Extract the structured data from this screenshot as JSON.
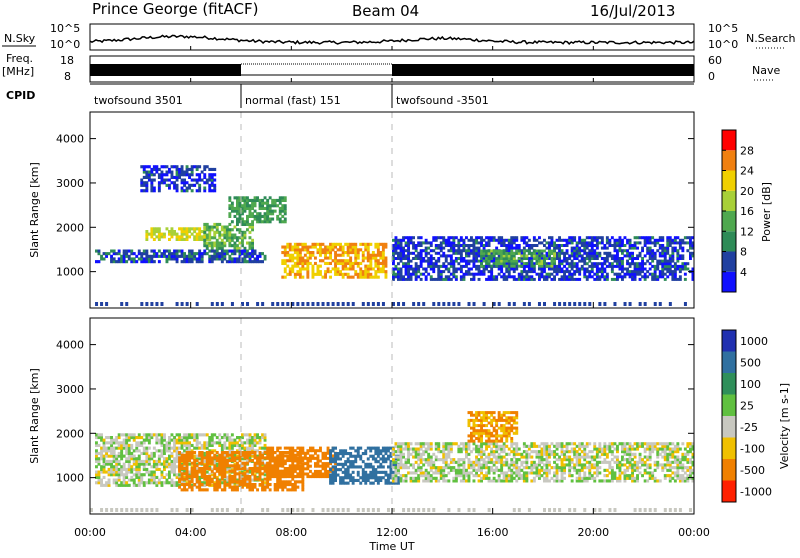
{
  "header": {
    "station": "Prince George (fitACF)",
    "beam": "Beam 04",
    "date": "16/Jul/2013"
  },
  "side_labels": {
    "nsky": "N.Sky",
    "freq_line1": "Freq.",
    "freq_line2": "[MHz]",
    "cpid": "CPID",
    "nsearch": "N.Search",
    "nave": "Nave"
  },
  "noise_axis": {
    "left_ticks": [
      "10^5",
      "10^0"
    ],
    "right_ticks": [
      "10^5",
      "10^0"
    ]
  },
  "freq_axis": {
    "left_ticks": [
      "18",
      "8"
    ],
    "right_ticks": [
      "60",
      "0"
    ]
  },
  "cpid_segments": [
    {
      "label": "twofsound 3501",
      "start_hour": 0,
      "end_hour": 6
    },
    {
      "label": "normal (fast) 151",
      "start_hour": 6,
      "end_hour": 12
    },
    {
      "label": "twofsound -3501",
      "start_hour": 12,
      "end_hour": 24
    }
  ],
  "time_axis": {
    "label": "Time UT",
    "ticks": [
      "00:00",
      "04:00",
      "08:00",
      "12:00",
      "16:00",
      "20:00",
      "00:00"
    ]
  },
  "chart_data": [
    {
      "type": "heatmap",
      "title": "",
      "xlabel": "Time UT",
      "ylabel": "Slant Range [km]",
      "xlim": [
        0,
        24
      ],
      "ylim": [
        180,
        4600
      ],
      "y_ticks": [
        "1000",
        "2000",
        "3000",
        "4000"
      ],
      "colorbar": {
        "label": "Power [dB]",
        "ticks": [
          "4",
          "8",
          "12",
          "16",
          "20",
          "24",
          "28"
        ],
        "colors": [
          "#1010ff",
          "#2040a0",
          "#2e8b57",
          "#4fa84f",
          "#a8d038",
          "#f0d000",
          "#f08010",
          "#ff0000"
        ]
      },
      "echo_regions": [
        {
          "t0": 2.2,
          "t1": 4.8,
          "r0": 1700,
          "r1": 2000,
          "value": 22
        },
        {
          "t0": 4.5,
          "t1": 6.5,
          "r0": 1500,
          "r1": 2100,
          "value": 16
        },
        {
          "t0": 5.5,
          "t1": 7.8,
          "r0": 2100,
          "r1": 2700,
          "value": 14
        },
        {
          "t0": 7.6,
          "t1": 11.8,
          "r0": 850,
          "r1": 1650,
          "value": 26
        },
        {
          "t0": 0.2,
          "t1": 7.0,
          "r0": 1200,
          "r1": 1500,
          "value": 8
        },
        {
          "t0": 12.0,
          "t1": 24.0,
          "r0": 800,
          "r1": 1800,
          "value": 7
        },
        {
          "t0": 15.5,
          "t1": 18.5,
          "r0": 1100,
          "r1": 1500,
          "value": 15
        },
        {
          "t0": 2.0,
          "t1": 5.0,
          "r0": 2800,
          "r1": 3400,
          "value": 7
        }
      ]
    },
    {
      "type": "heatmap",
      "title": "",
      "xlabel": "Time UT",
      "ylabel": "Slant Range [km]",
      "xlim": [
        0,
        24
      ],
      "ylim": [
        180,
        4600
      ],
      "y_ticks": [
        "1000",
        "2000",
        "3000",
        "4000"
      ],
      "colorbar": {
        "label": "Velocity [m s-1]",
        "ticks": [
          "1000",
          "500",
          "100",
          "25",
          "-25",
          "-100",
          "-500",
          "-1000"
        ],
        "colors": [
          "#2030b0",
          "#3070a0",
          "#2f8f5a",
          "#60c040",
          "#c8c8c0",
          "#f0c000",
          "#f08000",
          "#ff2000"
        ]
      },
      "echo_regions": [
        {
          "t0": 0.2,
          "t1": 7.0,
          "r0": 800,
          "r1": 2000,
          "value": 0
        },
        {
          "t0": 3.5,
          "t1": 8.5,
          "r0": 700,
          "r1": 1600,
          "value": -300
        },
        {
          "t0": 7.0,
          "t1": 9.8,
          "r0": 1000,
          "r1": 1700,
          "value": -200
        },
        {
          "t0": 9.5,
          "t1": 12.3,
          "r0": 850,
          "r1": 1700,
          "value": 600
        },
        {
          "t0": 12.0,
          "t1": 24.0,
          "r0": 900,
          "r1": 1800,
          "value": 0
        },
        {
          "t0": 15.0,
          "t1": 17.0,
          "r0": 1800,
          "r1": 2500,
          "value": -100
        }
      ]
    }
  ]
}
